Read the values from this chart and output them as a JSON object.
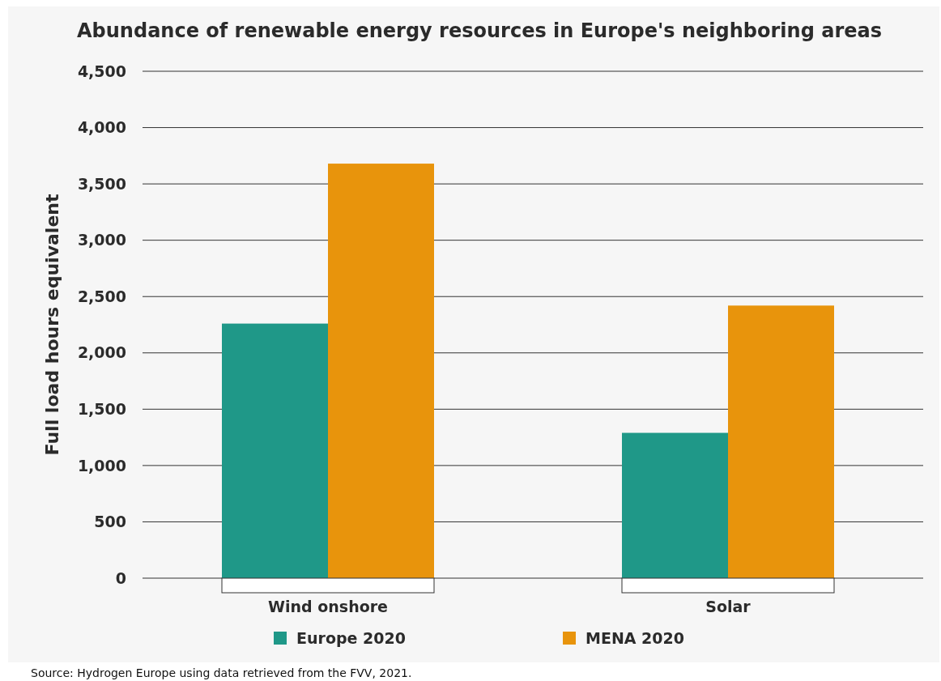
{
  "chart_data": {
    "type": "bar",
    "title": "Abundance of renewable energy resources in Europe's neighboring areas",
    "ylabel": "Full load hours equivalent",
    "categories": [
      "Wind onshore",
      "Solar"
    ],
    "series": [
      {
        "name": "Europe 2020",
        "color": "#1f9888",
        "values": [
          2260,
          1290
        ]
      },
      {
        "name": "MENA 2020",
        "color": "#e8940c",
        "values": [
          3680,
          2420
        ]
      }
    ],
    "ylim": [
      0,
      4500
    ],
    "yticks": [
      {
        "value": 0,
        "label": "0"
      },
      {
        "value": 500,
        "label": "500"
      },
      {
        "value": 1000,
        "label": "1,000"
      },
      {
        "value": 1500,
        "label": "1,500"
      },
      {
        "value": 2000,
        "label": "2,000"
      },
      {
        "value": 2500,
        "label": "2,500"
      },
      {
        "value": 3000,
        "label": "3,000"
      },
      {
        "value": 3500,
        "label": "3,500"
      },
      {
        "value": 4000,
        "label": "4,000"
      },
      {
        "value": 4500,
        "label": "4,500"
      }
    ],
    "grid": "y",
    "legend": "bottom",
    "annotations": [
      "Source: Hydrogen Europe using data retrieved from the FVV, 2021."
    ]
  }
}
